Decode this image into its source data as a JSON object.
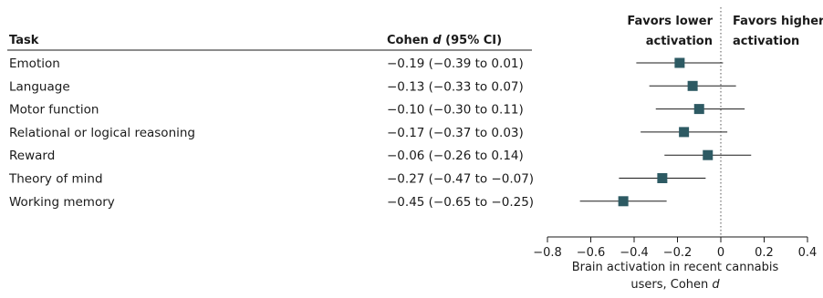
{
  "chart_data": {
    "type": "forest",
    "columns": {
      "task_header": "Task",
      "ci_header_prefix": "Cohen ",
      "ci_header_italic": "d",
      "ci_header_suffix": " (95% CI)"
    },
    "favors_lower": [
      "Favors lower",
      "activation"
    ],
    "favors_higher": [
      "Favors higher",
      "activation"
    ],
    "xlabel": [
      "Brain activation in recent cannabis",
      "users, Cohen "
    ],
    "xlabel_italic": "d",
    "xlim": [
      -0.8,
      0.4
    ],
    "xticks": [
      -0.8,
      -0.6,
      -0.4,
      -0.2,
      0,
      0.2,
      0.4
    ],
    "xtick_labels": [
      "−0.8",
      "−0.6",
      "−0.4",
      "−0.2",
      "0",
      "0.2",
      "0.4"
    ],
    "reference_line": 0,
    "marker_color": "#2d5a63",
    "rows": [
      {
        "task": "Emotion",
        "ci_text": "−0.19 (−0.39 to 0.01)",
        "d": -0.19,
        "lo": -0.39,
        "hi": 0.01
      },
      {
        "task": "Language",
        "ci_text": "−0.13 (−0.33 to 0.07)",
        "d": -0.13,
        "lo": -0.33,
        "hi": 0.07
      },
      {
        "task": "Motor function",
        "ci_text": "−0.10 (−0.30 to 0.11)",
        "d": -0.1,
        "lo": -0.3,
        "hi": 0.11
      },
      {
        "task": "Relational or logical reasoning",
        "ci_text": "−0.17 (−0.37 to 0.03)",
        "d": -0.17,
        "lo": -0.37,
        "hi": 0.03
      },
      {
        "task": "Reward",
        "ci_text": "−0.06 (−0.26 to 0.14)",
        "d": -0.06,
        "lo": -0.26,
        "hi": 0.14
      },
      {
        "task": "Theory of mind",
        "ci_text": "−0.27 (−0.47 to −0.07)",
        "d": -0.27,
        "lo": -0.47,
        "hi": -0.07
      },
      {
        "task": "Working memory",
        "ci_text": "−0.45 (−0.65 to −0.25)",
        "d": -0.45,
        "lo": -0.65,
        "hi": -0.25
      }
    ]
  }
}
